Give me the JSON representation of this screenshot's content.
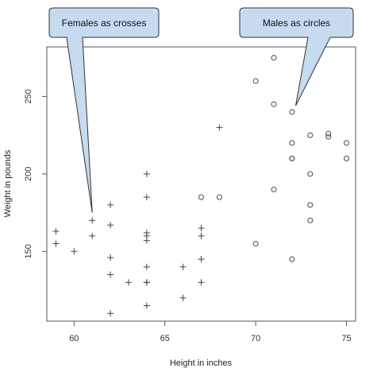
{
  "chart_data": {
    "type": "scatter",
    "title": "",
    "xlabel": "Height in inches",
    "ylabel": "Weight in pounds",
    "xlim": [
      58.5,
      75.5
    ],
    "ylim": [
      105,
      282
    ],
    "x_ticks": [
      60,
      65,
      70,
      75
    ],
    "y_ticks": [
      150,
      200,
      250
    ],
    "grid": false,
    "legend": "none",
    "series": [
      {
        "marker": "cross",
        "color": "#444444",
        "points": [
          [
            59,
            163
          ],
          [
            59,
            155
          ],
          [
            60,
            150
          ],
          [
            61,
            170
          ],
          [
            61,
            160
          ],
          [
            62,
            180
          ],
          [
            62,
            167
          ],
          [
            62,
            146
          ],
          [
            62,
            135
          ],
          [
            62,
            110
          ],
          [
            63,
            130
          ],
          [
            64,
            200
          ],
          [
            64,
            185
          ],
          [
            64,
            162
          ],
          [
            64,
            160
          ],
          [
            64,
            157
          ],
          [
            64,
            140
          ],
          [
            64,
            130
          ],
          [
            64,
            130
          ],
          [
            64,
            115
          ],
          [
            66,
            140
          ],
          [
            66,
            120
          ],
          [
            67,
            165
          ],
          [
            67,
            160
          ],
          [
            67,
            145
          ],
          [
            67,
            145
          ],
          [
            67,
            130
          ],
          [
            68,
            230
          ]
        ]
      },
      {
        "marker": "circle",
        "color": "#666666",
        "points": [
          [
            67,
            185
          ],
          [
            68,
            185
          ],
          [
            70,
            260
          ],
          [
            70,
            155
          ],
          [
            71,
            275
          ],
          [
            71,
            245
          ],
          [
            71,
            190
          ],
          [
            72,
            240
          ],
          [
            72,
            220
          ],
          [
            72,
            210
          ],
          [
            72,
            210
          ],
          [
            72,
            145
          ],
          [
            73,
            225
          ],
          [
            73,
            200
          ],
          [
            73,
            180
          ],
          [
            73,
            170
          ],
          [
            74,
            226
          ],
          [
            74,
            224
          ],
          [
            75,
            220
          ],
          [
            75,
            210
          ]
        ]
      }
    ],
    "annotations": [
      {
        "text": "Females as crosses",
        "target": [
          61,
          175
        ]
      },
      {
        "text": "Males as circles",
        "target": [
          72.2,
          244
        ]
      }
    ]
  }
}
